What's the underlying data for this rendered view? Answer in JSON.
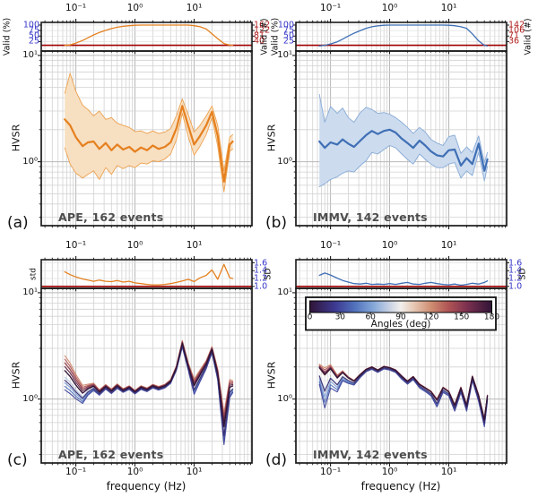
{
  "figure": {
    "background": "#ffffff"
  },
  "colors": {
    "orange": "#e5801f",
    "orange_fill": "#f7dfc2",
    "orange_edge": "#eda24f",
    "blue": "#3f6fb5",
    "blue_fill": "#ccdbee",
    "blue_edge": "#88abd6",
    "threshold_red": "#a00000",
    "tick_blue": "#3434c8",
    "tick_red": "#b22222",
    "grid": "#d2d2d2",
    "grid_major": "#b8b8b8",
    "axis": "#1a1a1a",
    "station_gray": "#4d4d4d"
  },
  "axis_text": {
    "freq_label": "frequency (Hz)",
    "hvsr_label": "HVSR",
    "x_tick_labels": [
      "10⁻¹",
      "10⁰",
      "10¹"
    ],
    "y_tick_labels": [
      "10⁰",
      "10¹"
    ]
  },
  "panels": [
    {
      "letter": "(a)",
      "station_label": "APE,  162 events",
      "ylabel": "HVSR",
      "strip": {
        "left_label": "Valid (%)",
        "right_label": "Valid (#)",
        "left_ticks": [
          "100",
          "75",
          "50",
          "25"
        ],
        "right_ticks": [
          "162",
          "122",
          "81",
          "40"
        ]
      }
    },
    {
      "letter": "(b)",
      "station_label": "IMMV, 142 events",
      "ylabel": "HVSR",
      "strip": {
        "left_label": "Valid (%)",
        "right_label": "Valid (#)",
        "left_ticks": [
          "100",
          "75",
          "50",
          "25"
        ],
        "right_ticks": [
          "142",
          "106",
          "71",
          "36"
        ]
      }
    },
    {
      "letter": "(c)",
      "station_label": "APE,  162 events",
      "ylabel": "HVSR",
      "strip": {
        "left_label": "std",
        "right_label": "SD",
        "left_ticks": [],
        "right_ticks": [
          "1.6",
          "1.4",
          "1.2",
          "1.0"
        ]
      }
    },
    {
      "letter": "(d)",
      "station_label": "IMMV, 142 events",
      "ylabel": "HVSR",
      "strip": {
        "left_label": "",
        "right_label": "SD",
        "left_ticks": [],
        "right_ticks": [
          "1.6",
          "1.4",
          "1.2",
          "1.0"
        ]
      }
    }
  ],
  "colorbar_text": {
    "label": "Angles (deg)",
    "ticks": [
      "0",
      "30",
      "60",
      "90",
      "120",
      "150",
      "180"
    ]
  },
  "chart_data": {
    "type": "line",
    "xlabel": "frequency (Hz)",
    "ylabel": "HVSR",
    "xlim": [
      0.026,
      95
    ],
    "ylim_hvsr": [
      0.25,
      11
    ],
    "x_ticks": [
      0.1,
      1,
      10
    ],
    "x_freq_hz": [
      0.065,
      0.08,
      0.1,
      0.13,
      0.16,
      0.2,
      0.25,
      0.32,
      0.4,
      0.5,
      0.63,
      0.8,
      1.0,
      1.26,
      1.6,
      2.0,
      2.5,
      3.2,
      4.0,
      5.0,
      6.3,
      8.0,
      10.0,
      12.6,
      16.0,
      20.0,
      25.0,
      32.0,
      40.0,
      45.0
    ],
    "panels": [
      {
        "id": "a",
        "kind": "mean_band",
        "station": "APE",
        "n_events": 162,
        "line_color_key": "orange",
        "hvsr_mean": [
          2.5,
          2.2,
          1.7,
          1.4,
          1.52,
          1.55,
          1.32,
          1.5,
          1.28,
          1.45,
          1.3,
          1.38,
          1.24,
          1.36,
          1.28,
          1.42,
          1.32,
          1.38,
          1.52,
          2.05,
          3.35,
          2.15,
          1.45,
          1.75,
          2.2,
          2.95,
          1.75,
          0.65,
          1.45,
          1.55
        ],
        "hvsr_upper": [
          4.4,
          6.8,
          4.6,
          3.4,
          3.1,
          2.7,
          3.0,
          2.5,
          2.6,
          2.3,
          2.2,
          2.1,
          1.92,
          1.95,
          1.85,
          1.95,
          1.85,
          1.9,
          2.05,
          2.7,
          3.9,
          2.75,
          1.9,
          2.2,
          2.7,
          3.35,
          2.2,
          0.82,
          1.7,
          1.8
        ],
        "hvsr_lower": [
          1.35,
          0.95,
          0.78,
          0.7,
          0.76,
          0.82,
          0.68,
          0.88,
          0.76,
          0.92,
          0.86,
          0.92,
          0.88,
          0.97,
          0.95,
          1.02,
          1.0,
          1.06,
          1.18,
          1.6,
          2.85,
          1.7,
          1.15,
          1.4,
          1.8,
          2.6,
          1.4,
          0.52,
          1.25,
          1.32
        ],
        "strip": {
          "metric": "valid_percent",
          "ylim": [
            -18,
            112
          ],
          "ticks_pct": [
            100,
            75,
            50,
            25
          ],
          "ticks_count": [
            162,
            122,
            81,
            40
          ],
          "threshold": 8,
          "values_pct": [
            7,
            10,
            18,
            30,
            42,
            55,
            66,
            76,
            84,
            90,
            94,
            97,
            99,
            100,
            100,
            100,
            100,
            100,
            100,
            100,
            100,
            100,
            97,
            92,
            82,
            60,
            38,
            16,
            9,
            8
          ]
        }
      },
      {
        "id": "b",
        "kind": "mean_band",
        "station": "IMMV",
        "n_events": 142,
        "line_color_key": "blue",
        "hvsr_mean": [
          1.55,
          1.35,
          1.52,
          1.45,
          1.62,
          1.48,
          1.38,
          1.58,
          1.78,
          1.95,
          1.82,
          1.95,
          2.0,
          1.88,
          1.65,
          1.5,
          1.35,
          1.58,
          1.42,
          1.25,
          1.15,
          1.12,
          1.28,
          1.3,
          0.92,
          1.08,
          0.95,
          1.48,
          0.82,
          1.05
        ],
        "hvsr_upper": [
          4.3,
          2.35,
          3.3,
          2.85,
          3.2,
          2.6,
          2.35,
          2.9,
          3.25,
          3.1,
          2.85,
          2.9,
          2.8,
          2.6,
          2.35,
          2.1,
          1.85,
          2.1,
          1.9,
          1.62,
          1.5,
          1.42,
          1.72,
          1.78,
          1.2,
          1.38,
          1.22,
          1.75,
          0.98,
          1.22
        ],
        "hvsr_lower": [
          0.58,
          0.62,
          0.68,
          0.72,
          0.78,
          0.82,
          0.8,
          0.92,
          1.02,
          1.22,
          1.18,
          1.3,
          1.42,
          1.35,
          1.18,
          1.05,
          0.95,
          1.18,
          1.05,
          0.95,
          0.88,
          0.88,
          0.95,
          0.98,
          0.7,
          0.82,
          0.74,
          1.22,
          0.66,
          0.9
        ],
        "strip": {
          "metric": "valid_percent",
          "ylim": [
            -18,
            112
          ],
          "ticks_pct": [
            100,
            75,
            50,
            25
          ],
          "ticks_count": [
            142,
            106,
            71,
            36
          ],
          "threshold": 8,
          "values_pct": [
            5,
            8,
            14,
            24,
            36,
            50,
            63,
            75,
            85,
            92,
            96,
            99,
            100,
            100,
            100,
            100,
            100,
            100,
            100,
            100,
            100,
            100,
            99,
            97,
            92,
            85,
            60,
            28,
            8,
            5
          ]
        }
      },
      {
        "id": "c",
        "kind": "angle_fan",
        "station": "APE",
        "n_events": 162,
        "angles_anchor": [
          0,
          30,
          60,
          90,
          120,
          150,
          180
        ],
        "angles_drawn": [
          0,
          15,
          30,
          45,
          60,
          75,
          90,
          105,
          120,
          135,
          150,
          165,
          180
        ],
        "hvsr_base": [
          1.75,
          1.55,
          1.3,
          1.1,
          1.22,
          1.3,
          1.15,
          1.3,
          1.18,
          1.32,
          1.2,
          1.28,
          1.16,
          1.28,
          1.22,
          1.32,
          1.26,
          1.32,
          1.46,
          1.95,
          3.3,
          2.0,
          1.3,
          1.65,
          2.1,
          2.9,
          1.7,
          0.52,
          1.25,
          1.3
        ],
        "spread_amp": [
          0.38,
          0.34,
          0.27,
          0.2,
          0.12,
          0.08,
          0.06,
          0.05,
          0.05,
          0.05,
          0.04,
          0.04,
          0.04,
          0.04,
          0.04,
          0.04,
          0.04,
          0.04,
          0.04,
          0.05,
          0.07,
          0.08,
          0.17,
          0.13,
          0.09,
          0.07,
          0.12,
          0.35,
          0.2,
          0.13
        ],
        "angle_weight": [
          0.15,
          -0.95,
          -0.55,
          0.1,
          1.0,
          0.6,
          0.15
        ],
        "strip": {
          "metric": "sd",
          "ylim": [
            0.95,
            1.68
          ],
          "ticks": [
            1.6,
            1.4,
            1.2,
            1.0
          ],
          "threshold": 1.0,
          "line_color_key": "orange",
          "values": [
            1.37,
            1.3,
            1.24,
            1.19,
            1.16,
            1.13,
            1.16,
            1.13,
            1.12,
            1.15,
            1.11,
            1.13,
            1.09,
            1.07,
            1.05,
            1.04,
            1.04,
            1.05,
            1.07,
            1.1,
            1.14,
            1.18,
            1.12,
            1.22,
            1.28,
            1.42,
            1.18,
            1.56,
            1.22,
            1.2
          ]
        }
      },
      {
        "id": "d",
        "kind": "angle_fan",
        "station": "IMMV",
        "n_events": 142,
        "angles_anchor": [
          0,
          30,
          60,
          90,
          120,
          150,
          180
        ],
        "angles_drawn": [
          0,
          15,
          30,
          45,
          60,
          75,
          90,
          105,
          120,
          135,
          150,
          165,
          180
        ],
        "hvsr_base": [
          1.85,
          1.5,
          1.8,
          1.5,
          1.72,
          1.55,
          1.45,
          1.68,
          1.88,
          1.98,
          1.85,
          2.0,
          1.95,
          1.85,
          1.62,
          1.45,
          1.6,
          1.35,
          1.25,
          1.15,
          0.95,
          1.25,
          1.15,
          0.85,
          1.25,
          0.85,
          1.6,
          1.05,
          0.62,
          1.05
        ],
        "spread_amp": [
          0.3,
          0.6,
          0.35,
          0.25,
          0.15,
          0.1,
          0.07,
          0.05,
          0.04,
          0.04,
          0.04,
          0.04,
          0.04,
          0.04,
          0.05,
          0.05,
          0.05,
          0.06,
          0.06,
          0.07,
          0.12,
          0.08,
          0.07,
          0.1,
          0.08,
          0.1,
          0.07,
          0.1,
          0.12,
          0.08
        ],
        "angle_weight": [
          0.2,
          -1.0,
          -0.6,
          -0.1,
          0.45,
          0.3,
          0.2
        ],
        "strip": {
          "metric": "sd",
          "ylim": [
            0.95,
            1.68
          ],
          "ticks": [
            1.6,
            1.4,
            1.2,
            1.0
          ],
          "threshold": 1.0,
          "line_color_key": "blue",
          "values": [
            1.28,
            1.34,
            1.29,
            1.21,
            1.15,
            1.11,
            1.07,
            1.06,
            1.08,
            1.05,
            1.06,
            1.05,
            1.07,
            1.05,
            1.08,
            1.1,
            1.06,
            1.05,
            1.08,
            1.1,
            1.07,
            1.05,
            1.04,
            1.06,
            1.03,
            1.05,
            1.08,
            1.06,
            1.1,
            1.14
          ]
        }
      }
    ],
    "colorbar": {
      "label": "Angles (deg)",
      "ticks": [
        0,
        30,
        60,
        90,
        120,
        150,
        180
      ],
      "range": [
        0,
        180
      ],
      "cmap_stops": [
        [
          0,
          "#301437"
        ],
        [
          0.14,
          "#3d3a92"
        ],
        [
          0.25,
          "#5273bd"
        ],
        [
          0.35,
          "#85a8d8"
        ],
        [
          0.44,
          "#c9d2e4"
        ],
        [
          0.5,
          "#f2efec"
        ],
        [
          0.57,
          "#e6c8b4"
        ],
        [
          0.67,
          "#cd8b70"
        ],
        [
          0.76,
          "#b05555"
        ],
        [
          0.86,
          "#7e3150"
        ],
        [
          1,
          "#301437"
        ]
      ]
    }
  }
}
